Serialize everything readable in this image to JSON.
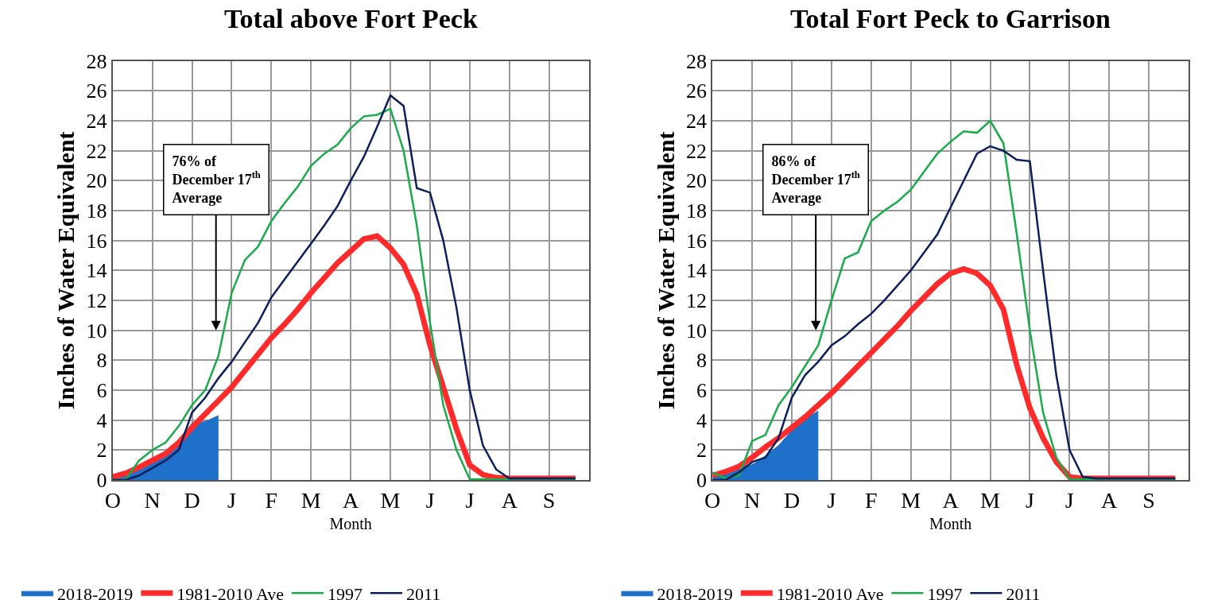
{
  "chart_data": [
    {
      "type": "line",
      "title": "Total above Fort Peck",
      "xlabel": "Month",
      "ylabel": "Inches of Water Equivalent",
      "categories": [
        "O",
        null,
        null,
        "N",
        null,
        null,
        "D",
        null,
        null,
        "J",
        null,
        null,
        "F",
        null,
        null,
        "M",
        null,
        null,
        "A",
        null,
        null,
        "M",
        null,
        null,
        "J",
        null,
        null,
        "J",
        null,
        null,
        "A",
        null,
        null,
        "S",
        null,
        null
      ],
      "ylim": [
        0,
        28
      ],
      "yticks": [
        0,
        2,
        4,
        6,
        8,
        10,
        12,
        14,
        16,
        18,
        20,
        22,
        24,
        26,
        28
      ],
      "grid": true,
      "legend": "bottom",
      "annotations": [
        "76% of December 17$^{th}$ Average"
      ],
      "series": [
        {
          "name": "2018-2019",
          "type": "area",
          "color": "#1f70c8",
          "values": [
            0.3,
            0.6,
            0.9,
            1.3,
            1.8,
            2.5,
            3.8,
            3.9,
            4.3,
            null,
            null,
            null,
            null,
            null,
            null,
            null,
            null,
            null,
            null,
            null,
            null,
            null,
            null,
            null,
            null,
            null,
            null,
            null,
            null,
            null,
            null,
            null,
            null,
            null,
            null,
            null
          ]
        },
        {
          "name": "1981-2010 Ave",
          "color": "#ff2b2b",
          "values": [
            0.2,
            0.45,
            0.85,
            1.3,
            1.75,
            2.5,
            3.5,
            4.4,
            5.3,
            6.2,
            7.3,
            8.4,
            9.5,
            10.4,
            11.4,
            12.5,
            13.5,
            14.5,
            15.3,
            16.1,
            16.3,
            15.5,
            14.4,
            12.4,
            9.0,
            6.2,
            3.4,
            1.0,
            0.35,
            0.15,
            0.1,
            0.1,
            0.1,
            0.1,
            0.1,
            0.1
          ]
        },
        {
          "name": "1997",
          "color": "#1aab4b",
          "values": [
            0,
            0.05,
            1.3,
            2.0,
            2.5,
            3.6,
            5.0,
            6.0,
            8.3,
            12.5,
            14.7,
            15.6,
            17.3,
            18.5,
            19.6,
            21.0,
            21.8,
            22.4,
            23.5,
            24.3,
            24.4,
            24.8,
            22.0,
            17.0,
            10.5,
            5.0,
            2.0,
            0.05,
            0.05,
            0.05,
            0.05,
            0.05,
            0.05,
            0.05,
            0.05,
            0.05
          ]
        },
        {
          "name": "2011",
          "color": "#0d1f5c",
          "values": [
            0,
            0,
            0.3,
            0.8,
            1.3,
            2.0,
            4.5,
            5.5,
            6.8,
            7.9,
            9.2,
            10.5,
            12.2,
            13.4,
            14.6,
            15.8,
            17.0,
            18.3,
            20.0,
            21.6,
            23.6,
            25.7,
            25.0,
            19.5,
            19.2,
            16.0,
            11.5,
            6.0,
            2.3,
            0.7,
            0.1,
            0.1,
            0.1,
            0.1,
            0.1,
            0.1
          ]
        }
      ]
    },
    {
      "type": "line",
      "title": "Total Fort Peck to Garrison",
      "xlabel": "Month",
      "ylabel": "Inches of Water Equivalent",
      "categories": [
        "O",
        null,
        null,
        "N",
        null,
        null,
        "D",
        null,
        null,
        "J",
        null,
        null,
        "F",
        null,
        null,
        "M",
        null,
        null,
        "A",
        null,
        null,
        "M",
        null,
        null,
        "J",
        null,
        null,
        "J",
        null,
        null,
        "A",
        null,
        null,
        "S",
        null,
        null
      ],
      "ylim": [
        0,
        28
      ],
      "yticks": [
        0,
        2,
        4,
        6,
        8,
        10,
        12,
        14,
        16,
        18,
        20,
        22,
        24,
        26,
        28
      ],
      "grid": true,
      "legend": "bottom",
      "annotations": [
        "86% of December 17$^{th}$ Average"
      ],
      "series": [
        {
          "name": "2018-2019",
          "type": "area",
          "color": "#1f70c8",
          "values": [
            0.2,
            0.6,
            0.9,
            1.0,
            1.6,
            2.3,
            3.3,
            4.1,
            4.6,
            null,
            null,
            null,
            null,
            null,
            null,
            null,
            null,
            null,
            null,
            null,
            null,
            null,
            null,
            null,
            null,
            null,
            null,
            null,
            null,
            null,
            null,
            null,
            null,
            null,
            null,
            null
          ]
        },
        {
          "name": "1981-2010 Ave",
          "color": "#ff2b2b",
          "values": [
            0.3,
            0.55,
            0.9,
            1.5,
            2.2,
            2.8,
            3.5,
            4.2,
            5.0,
            5.8,
            6.7,
            7.6,
            8.5,
            9.4,
            10.3,
            11.3,
            12.2,
            13.1,
            13.8,
            14.1,
            13.8,
            13.0,
            11.4,
            7.7,
            4.8,
            2.8,
            1.2,
            0.2,
            0.1,
            0.1,
            0.1,
            0.1,
            0.1,
            0.1,
            0.1,
            0.1
          ]
        },
        {
          "name": "1997",
          "color": "#1aab4b",
          "values": [
            0.5,
            0.1,
            0.3,
            2.6,
            3.0,
            5.0,
            6.2,
            7.6,
            9.0,
            12.0,
            14.8,
            15.2,
            17.3,
            18.0,
            18.6,
            19.4,
            20.6,
            21.8,
            22.6,
            23.3,
            23.2,
            24.0,
            22.5,
            16.5,
            10.0,
            4.5,
            1.5,
            0.05,
            0.05,
            0.05,
            0.05,
            0.05,
            0.05,
            0.05,
            0.05,
            0.05
          ]
        },
        {
          "name": "2011",
          "color": "#0d1f5c",
          "values": [
            0,
            0,
            0.5,
            1.2,
            1.5,
            2.8,
            5.5,
            7.0,
            7.9,
            9.0,
            9.6,
            10.4,
            11.1,
            12.0,
            13.0,
            14.0,
            15.2,
            16.4,
            18.2,
            20.0,
            21.8,
            22.3,
            22.0,
            21.4,
            21.3,
            14.0,
            7.0,
            2.0,
            0.2,
            0.1,
            0.1,
            0.1,
            0.1,
            0.1,
            0.1,
            0.1
          ]
        }
      ]
    }
  ]
}
